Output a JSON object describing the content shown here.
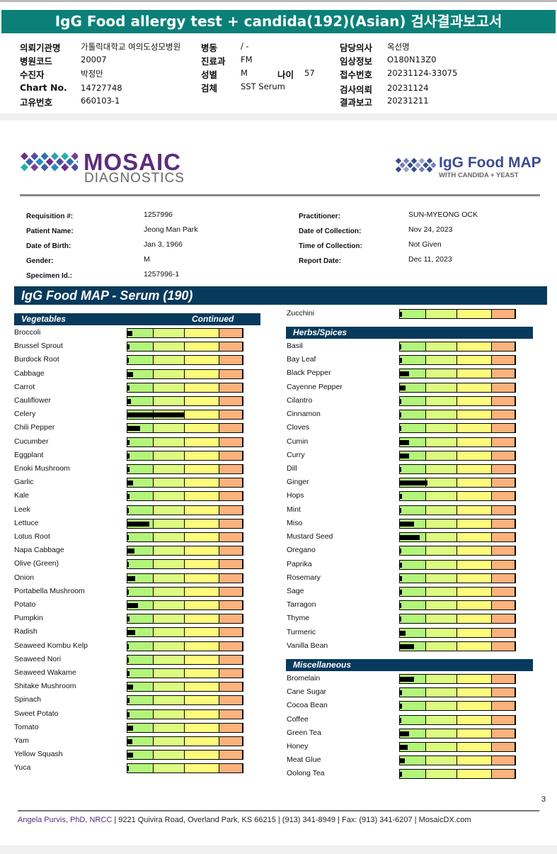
{
  "banner": {
    "title": "IgG Food allergy test + candida(192)(Asian) 검사결과보고서"
  },
  "korean_info": [
    {
      "k": "의뢰기관명",
      "v": "가톨릭대학교 여의도성모병원"
    },
    {
      "k": "병원코드",
      "v": "20007"
    },
    {
      "k": "수진자",
      "v": "박정만"
    },
    {
      "k": "Chart No.",
      "v": "14727748"
    },
    {
      "k": "고유번호",
      "v": "660103-1"
    },
    {
      "k": "병동",
      "v": "/ -"
    },
    {
      "k": "진료과",
      "v": "FM"
    },
    {
      "k": "성별",
      "v": "M"
    },
    {
      "k": "검체",
      "v": "SST Serum"
    },
    {
      "k": "나이",
      "v": "57"
    },
    {
      "k": "담당의사",
      "v": "옥선명"
    },
    {
      "k": "임상정보",
      "v": "O180N13Z0"
    },
    {
      "k": "접수번호",
      "v": "20231124-33075"
    },
    {
      "k": "검사의뢰",
      "v": "20231124"
    },
    {
      "k": "결과보고",
      "v": "20231211"
    }
  ],
  "logos": {
    "mosaic": "MOSAIC",
    "diagnostics": "DIAGNOSTICS",
    "igg": "IgG Food MAP",
    "candida": "WITH CANDIDA + YEAST"
  },
  "requisition": [
    {
      "l": "Requisition #:",
      "v": "1257996"
    },
    {
      "l": "Patient Name:",
      "v": "Jeong Man Park"
    },
    {
      "l": "Date of Birth:",
      "v": "Jan 3, 1966"
    },
    {
      "l": "Gender:",
      "v": "M"
    },
    {
      "l": "Specimen Id.:",
      "v": "1257996-1"
    },
    {
      "l": "Practitioner:",
      "v": "SUN-MYEONG OCK"
    },
    {
      "l": "Date of Collection:",
      "v": "Nov 24, 2023"
    },
    {
      "l": "Time of Collection:",
      "v": "Not Given"
    },
    {
      "l": "Report Date:",
      "v": "Dec 11, 2023"
    }
  ],
  "report_title": "IgG Food MAP - Serum (190)",
  "sections": {
    "vegetables": "Vegetables",
    "continued": "Continued",
    "herbs": "Herbs/Spices",
    "misc": "Miscellaneous"
  },
  "scale_note": "values are fraction of full bar width",
  "vegetables": [
    {
      "n": "Broccoli",
      "v": 0.04
    },
    {
      "n": "Brussel Sprout",
      "v": 0.02
    },
    {
      "n": "Burdock Root",
      "v": 0.01
    },
    {
      "n": "Cabbage",
      "v": 0.05
    },
    {
      "n": "Carrot",
      "v": 0.02
    },
    {
      "n": "Cauliflower",
      "v": 0.03
    },
    {
      "n": "Celery",
      "v": 0.49
    },
    {
      "n": "Chili Pepper",
      "v": 0.11
    },
    {
      "n": "Cucumber",
      "v": 0.02
    },
    {
      "n": "Eggplant",
      "v": 0.02
    },
    {
      "n": "Enoki Mushroom",
      "v": 0.02
    },
    {
      "n": "Garlic",
      "v": 0.05
    },
    {
      "n": "Kale",
      "v": 0.02
    },
    {
      "n": "Leek",
      "v": 0.015
    },
    {
      "n": "Lettuce",
      "v": 0.19
    },
    {
      "n": "Lotus Root",
      "v": 0.01
    },
    {
      "n": "Napa Cabbage",
      "v": 0.06
    },
    {
      "n": "Olive (Green)",
      "v": 0.005
    },
    {
      "n": "Onion",
      "v": 0.07
    },
    {
      "n": "Portabella Mushroom",
      "v": 0.01
    },
    {
      "n": "Potato",
      "v": 0.09
    },
    {
      "n": "Pumpkin",
      "v": 0.02
    },
    {
      "n": "Radish",
      "v": 0.07
    },
    {
      "n": "Seaweed Kombu Kelp",
      "v": 0.015
    },
    {
      "n": "Seaweed Nori",
      "v": 0.01
    },
    {
      "n": "Seaweed Wakame",
      "v": 0.02
    },
    {
      "n": "Shitake Mushroom",
      "v": 0.05
    },
    {
      "n": "Spinach",
      "v": 0.02
    },
    {
      "n": "Sweet Potato",
      "v": 0.02
    },
    {
      "n": "Tomato",
      "v": 0.05
    },
    {
      "n": "Yam",
      "v": 0.04
    },
    {
      "n": "Yellow Squash",
      "v": 0.05
    },
    {
      "n": "Yuca",
      "v": 0.01
    }
  ],
  "vegetables_cont": [
    {
      "n": "Zucchini",
      "v": 0.02
    }
  ],
  "herbs": [
    {
      "n": "Basil",
      "v": 0.01
    },
    {
      "n": "Bay Leaf",
      "v": 0.02
    },
    {
      "n": "Black Pepper",
      "v": 0.08
    },
    {
      "n": "Cayenne Pepper",
      "v": 0.05
    },
    {
      "n": "Cilantro",
      "v": 0.01
    },
    {
      "n": "Cinnamon",
      "v": 0.015
    },
    {
      "n": "Cloves",
      "v": 0.01
    },
    {
      "n": "Cumin",
      "v": 0.08
    },
    {
      "n": "Curry",
      "v": 0.08
    },
    {
      "n": "Dill",
      "v": 0.01
    },
    {
      "n": "Ginger",
      "v": 0.24
    },
    {
      "n": "Hops",
      "v": 0.02
    },
    {
      "n": "Mint",
      "v": 0.01
    },
    {
      "n": "Miso",
      "v": 0.12
    },
    {
      "n": "Mustard Seed",
      "v": 0.17
    },
    {
      "n": "Oregano",
      "v": 0.01
    },
    {
      "n": "Paprika",
      "v": 0.02
    },
    {
      "n": "Rosemary",
      "v": 0.02
    },
    {
      "n": "Sage",
      "v": 0.02
    },
    {
      "n": "Tarragon",
      "v": 0.015
    },
    {
      "n": "Thyme",
      "v": 0.015
    },
    {
      "n": "Turmeric",
      "v": 0.05
    },
    {
      "n": "Vanilla Bean",
      "v": 0.12
    }
  ],
  "misc": [
    {
      "n": "Bromelain",
      "v": 0.12
    },
    {
      "n": "Cane Sugar",
      "v": 0.02
    },
    {
      "n": "Cocoa Bean",
      "v": 0.02
    },
    {
      "n": "Coffee",
      "v": 0.01
    },
    {
      "n": "Green Tea",
      "v": 0.08
    },
    {
      "n": "Honey",
      "v": 0.07
    },
    {
      "n": "Meat Glue",
      "v": 0.04
    },
    {
      "n": "Oolong Tea",
      "v": 0.02
    }
  ],
  "page_number": "3",
  "footer": {
    "name": "Angela Purvis, PhD, NRCC",
    "rest": " | 9221 Quivira Road, Overland Park, KS 66215  |  (913) 341-8949  |  Fax: (913) 341-6207 | MosaicDX.com"
  }
}
